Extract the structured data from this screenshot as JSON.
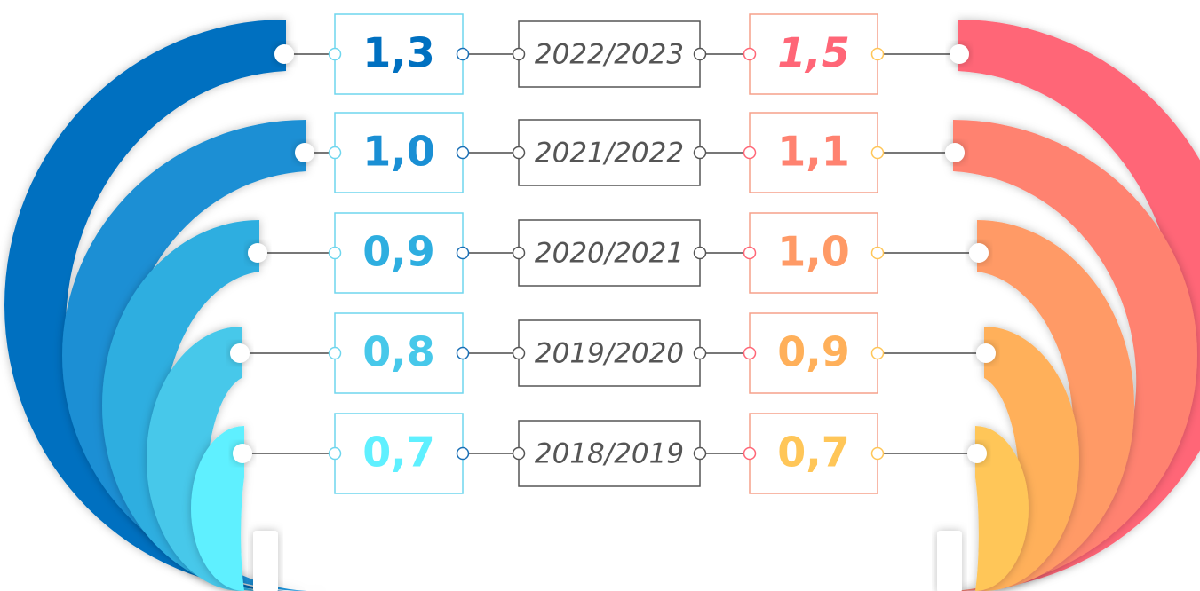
{
  "rows": [
    {
      "left": "1,3",
      "period": "2022/2023",
      "right": "1,5"
    },
    {
      "left": "1,0",
      "period": "2021/2022",
      "right": "1,1"
    },
    {
      "left": "0,9",
      "period": "2020/2021",
      "right": "1,0"
    },
    {
      "left": "0,8",
      "period": "2019/2020",
      "right": "0,9"
    },
    {
      "left": "0,7",
      "period": "2018/2019",
      "right": "0,7"
    }
  ]
}
